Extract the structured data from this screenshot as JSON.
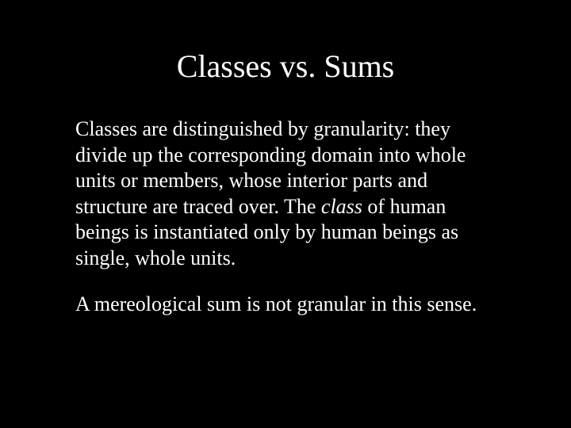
{
  "slide": {
    "background_color": "#000000",
    "text_color": "#ffffff",
    "font_family": "Times New Roman",
    "title": {
      "text": "Classes vs. Sums",
      "fontsize": 40,
      "align": "center"
    },
    "body": {
      "fontsize": 26,
      "paragraphs": [
        {
          "runs": [
            {
              "text": "Classes are distinguished by granularity: they divide up the corresponding domain into whole units or members, whose interior parts and structure are traced over. The ",
              "italic": false
            },
            {
              "text": "class",
              "italic": true
            },
            {
              "text": " of human beings is instantiated only by human beings as single, whole units.",
              "italic": false
            }
          ]
        },
        {
          "runs": [
            {
              "text": "A mereological sum is not granular in this sense.",
              "italic": false
            }
          ]
        }
      ]
    }
  }
}
